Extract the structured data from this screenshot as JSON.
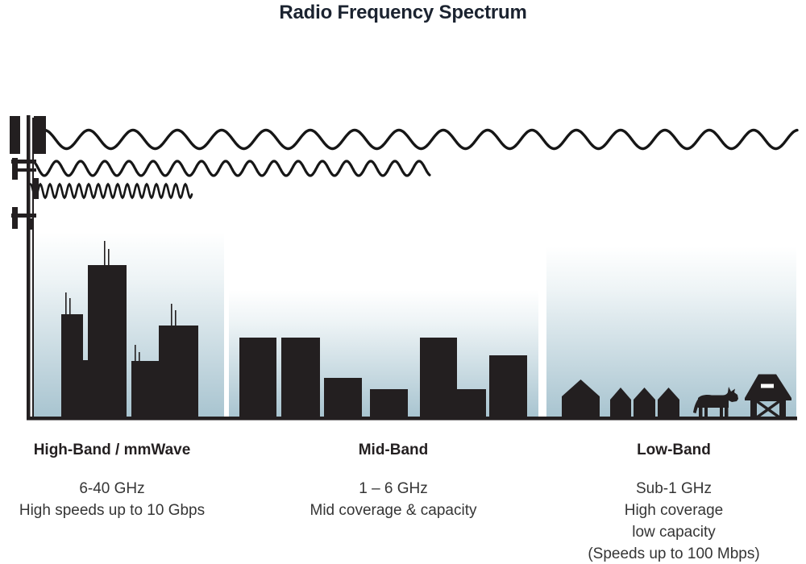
{
  "title": "Radio Frequency Spectrum",
  "colors": {
    "ink": "#231f20",
    "sky_top": "#ffffff",
    "sky_bottom": "#a8c4d0"
  },
  "bands": [
    {
      "name": "High-Band / mmWave",
      "frequency": "6-40 GHz",
      "details": [
        "High speeds up to 10 Gbps"
      ],
      "wave": "shortest wavelength, shortest reach",
      "scene": "city skyscrapers with rooftop antennas"
    },
    {
      "name": "Mid-Band",
      "frequency": "1 – 6 GHz",
      "details": [
        "Mid coverage & capacity"
      ],
      "wave": "medium wavelength, medium reach",
      "scene": "mid-rise buildings"
    },
    {
      "name": "Low-Band",
      "frequency": "Sub-1 GHz",
      "details": [
        "High coverage",
        "low capacity",
        "(Speeds up to 100 Mbps)"
      ],
      "wave": "longest wavelength, longest reach",
      "scene": "houses, cow and barn"
    }
  ]
}
